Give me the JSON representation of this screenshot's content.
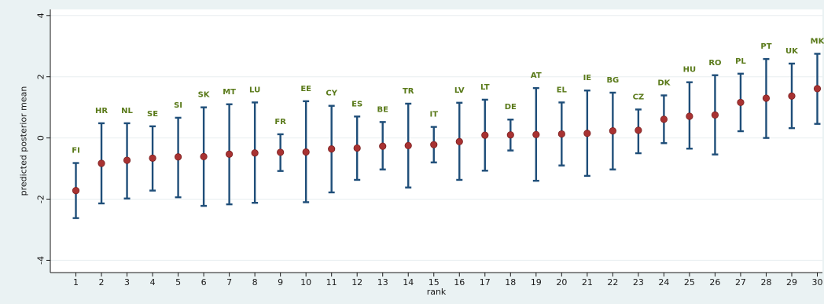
{
  "colors": {
    "outer_bg": "#eaf2f3",
    "plot_bg": "#ffffff",
    "grid": "#e8eef0",
    "errorbar": "#1f4e79",
    "marker": "#a83232",
    "marker_stroke": "#7a1f1f",
    "label": "#5a7a1a",
    "axis": "#1a1a1a"
  },
  "chart_data": {
    "type": "scatter",
    "title": "",
    "xlabel": "rank",
    "ylabel": "predicted posterior mean",
    "xlim": [
      0,
      30.2
    ],
    "ylim": [
      -4.4,
      4.2
    ],
    "yticks": [
      -4,
      -2,
      0,
      2,
      4
    ],
    "ytick_labels": [
      "-4",
      "-2",
      "0",
      "2",
      "4"
    ],
    "xticks": [
      1,
      2,
      3,
      4,
      5,
      6,
      7,
      8,
      9,
      10,
      11,
      12,
      13,
      14,
      15,
      16,
      17,
      18,
      19,
      20,
      21,
      22,
      23,
      24,
      25,
      26,
      27,
      28,
      29,
      30
    ],
    "xtick_labels": [
      "1",
      "2",
      "3",
      "4",
      "5",
      "6",
      "7",
      "8",
      "9",
      "10",
      "11",
      "12",
      "13",
      "14",
      "15",
      "16",
      "17",
      "18",
      "19",
      "20",
      "21",
      "22",
      "23",
      "24",
      "25",
      "26",
      "27",
      "28",
      "29",
      "30"
    ],
    "grid": true,
    "points": [
      {
        "rank": 1,
        "label": "FI",
        "mean": -1.72,
        "lower": -2.62,
        "upper": -0.82
      },
      {
        "rank": 2,
        "label": "HR",
        "mean": -0.83,
        "lower": -2.14,
        "upper": 0.48
      },
      {
        "rank": 3,
        "label": "NL",
        "mean": -0.73,
        "lower": -1.98,
        "upper": 0.48
      },
      {
        "rank": 4,
        "label": "SE",
        "mean": -0.66,
        "lower": -1.72,
        "upper": 0.38
      },
      {
        "rank": 5,
        "label": "SI",
        "mean": -0.62,
        "lower": -1.94,
        "upper": 0.66
      },
      {
        "rank": 6,
        "label": "SK",
        "mean": -0.61,
        "lower": -2.22,
        "upper": 1.0
      },
      {
        "rank": 7,
        "label": "MT",
        "mean": -0.53,
        "lower": -2.17,
        "upper": 1.1
      },
      {
        "rank": 8,
        "label": "LU",
        "mean": -0.49,
        "lower": -2.12,
        "upper": 1.16
      },
      {
        "rank": 9,
        "label": "FR",
        "mean": -0.47,
        "lower": -1.08,
        "upper": 0.12
      },
      {
        "rank": 10,
        "label": "EE",
        "mean": -0.46,
        "lower": -2.1,
        "upper": 1.2
      },
      {
        "rank": 11,
        "label": "CY",
        "mean": -0.36,
        "lower": -1.78,
        "upper": 1.05
      },
      {
        "rank": 12,
        "label": "ES",
        "mean": -0.33,
        "lower": -1.37,
        "upper": 0.7
      },
      {
        "rank": 13,
        "label": "BE",
        "mean": -0.27,
        "lower": -1.03,
        "upper": 0.52
      },
      {
        "rank": 14,
        "label": "TR",
        "mean": -0.25,
        "lower": -1.62,
        "upper": 1.12
      },
      {
        "rank": 15,
        "label": "IT",
        "mean": -0.22,
        "lower": -0.8,
        "upper": 0.36
      },
      {
        "rank": 16,
        "label": "LV",
        "mean": -0.12,
        "lower": -1.37,
        "upper": 1.15
      },
      {
        "rank": 17,
        "label": "LT",
        "mean": 0.09,
        "lower": -1.07,
        "upper": 1.25
      },
      {
        "rank": 18,
        "label": "DE",
        "mean": 0.1,
        "lower": -0.41,
        "upper": 0.6
      },
      {
        "rank": 19,
        "label": "AT",
        "mean": 0.11,
        "lower": -1.4,
        "upper": 1.63
      },
      {
        "rank": 20,
        "label": "EL",
        "mean": 0.13,
        "lower": -0.9,
        "upper": 1.16
      },
      {
        "rank": 21,
        "label": "IE",
        "mean": 0.15,
        "lower": -1.24,
        "upper": 1.55
      },
      {
        "rank": 22,
        "label": "BG",
        "mean": 0.23,
        "lower": -1.03,
        "upper": 1.48
      },
      {
        "rank": 23,
        "label": "CZ",
        "mean": 0.25,
        "lower": -0.5,
        "upper": 0.93
      },
      {
        "rank": 24,
        "label": "DK",
        "mean": 0.61,
        "lower": -0.17,
        "upper": 1.39
      },
      {
        "rank": 25,
        "label": "HU",
        "mean": 0.71,
        "lower": -0.35,
        "upper": 1.82
      },
      {
        "rank": 26,
        "label": "RO",
        "mean": 0.75,
        "lower": -0.54,
        "upper": 2.05
      },
      {
        "rank": 27,
        "label": "PL",
        "mean": 1.16,
        "lower": 0.22,
        "upper": 2.1
      },
      {
        "rank": 28,
        "label": "PT",
        "mean": 1.3,
        "lower": 0.0,
        "upper": 2.58
      },
      {
        "rank": 29,
        "label": "UK",
        "mean": 1.37,
        "lower": 0.32,
        "upper": 2.43
      },
      {
        "rank": 30,
        "label": "MK",
        "mean": 1.61,
        "lower": 0.46,
        "upper": 2.75
      }
    ]
  }
}
